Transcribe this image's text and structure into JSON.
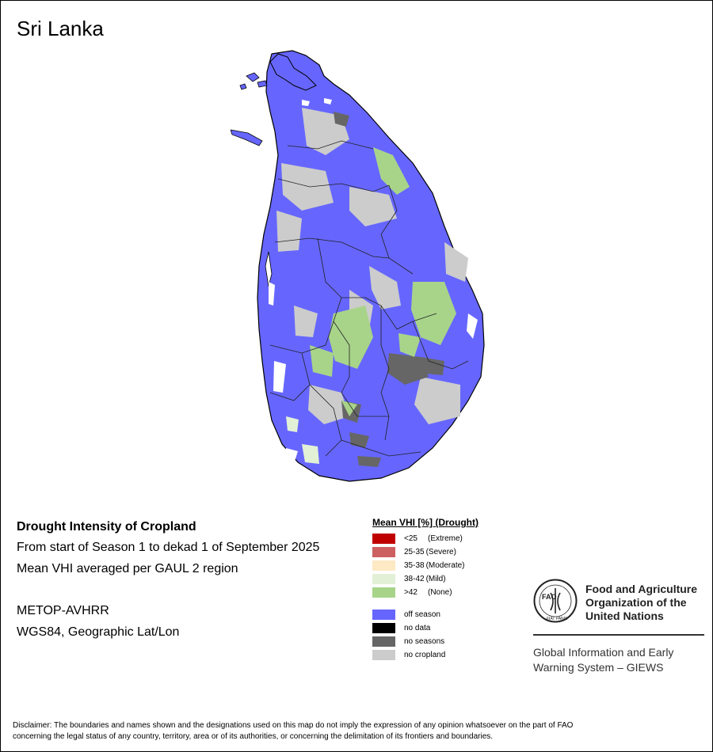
{
  "map": {
    "title": "Sri Lanka"
  },
  "info": {
    "heading": "Drought Intensity of Cropland",
    "period": "From start of Season 1 to dekad 1 of September 2025",
    "method": "Mean VHI averaged per GAUL 2 region",
    "sensor": "METOP-AVHRR",
    "projection": "WGS84, Geographic Lat/Lon"
  },
  "legend": {
    "title": "Mean VHI [%] (Drought)",
    "vhi_classes": [
      {
        "range": "<25",
        "label": "(Extreme)",
        "color": "#c00000"
      },
      {
        "range": "25-35",
        "label": "(Severe)",
        "color": "#cd6060"
      },
      {
        "range": "35-38",
        "label": "(Moderate)",
        "color": "#fde9c4"
      },
      {
        "range": "38-42",
        "label": "(Mild)",
        "color": "#e2f0d6"
      },
      {
        "range": ">42",
        "label": "(None)",
        "color": "#a8d48a"
      }
    ],
    "other_classes": [
      {
        "label": "off season",
        "color": "#6666ff"
      },
      {
        "label": "no data",
        "color": "#000000"
      },
      {
        "label": "no seasons",
        "color": "#666666"
      },
      {
        "label": "no cropland",
        "color": "#cccccc"
      }
    ]
  },
  "logo": {
    "org_line1": "Food and Agriculture",
    "org_line2": "Organization of the",
    "org_line3": "United Nations",
    "fao_letters": "FAO",
    "motto": "FIAT PANIS",
    "giews_line1": "Global Information and Early",
    "giews_line2": "Warning System – GIEWS"
  },
  "disclaimer": {
    "line1": "Disclaimer: The boundaries and names shown and the designations used on this map do not imply the expression of any opinion whatsoever on the part of FAO",
    "line2": "concerning the legal status of any country, territory, area or of its authorities, or concerning the delimitation of its frontiers and boundaries."
  }
}
